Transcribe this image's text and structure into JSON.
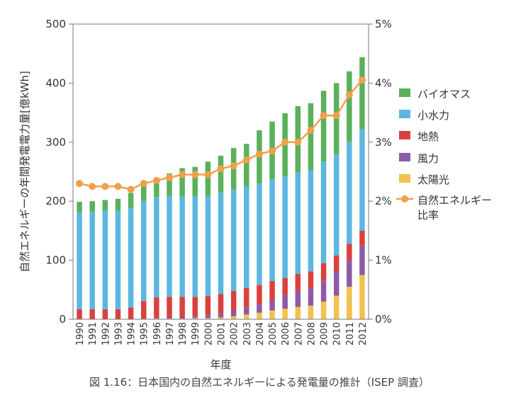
{
  "chart_data": {
    "type": "bar",
    "stacked": true,
    "caption": "図 1.16：日本国内の自然エネルギーによる発電量の推計（ISEP 調査）",
    "xlabel": "年度",
    "ylabel": "自然エネルギーの年間発電電力量[億kWh]",
    "ylim": [
      0,
      500
    ],
    "yticks": [
      "0",
      "100",
      "200",
      "300",
      "400",
      "500"
    ],
    "y2lim": [
      0,
      5
    ],
    "y2ticks": [
      "0%",
      "1%",
      "2%",
      "3%",
      "4%",
      "5%"
    ],
    "grid": false,
    "legend_position": "right",
    "categories": [
      "1990",
      "1991",
      "1992",
      "1993",
      "1994",
      "1995",
      "1996",
      "1997",
      "1998",
      "1999",
      "2000",
      "2001",
      "2002",
      "2003",
      "2004",
      "2005",
      "2006",
      "2007",
      "2008",
      "2009",
      "2010",
      "2011",
      "2012"
    ],
    "series": [
      {
        "name": "太陽光",
        "color": "#f2c14e",
        "values": [
          0,
          0,
          0,
          0,
          0,
          0,
          1,
          1,
          1,
          2,
          2,
          3,
          5,
          8,
          11,
          15,
          18,
          21,
          23,
          30,
          40,
          55,
          75
        ]
      },
      {
        "name": "風力",
        "color": "#8d5aa7",
        "values": [
          0,
          0,
          0,
          0,
          0,
          1,
          1,
          2,
          2,
          3,
          5,
          7,
          10,
          12,
          14,
          18,
          22,
          27,
          30,
          35,
          40,
          45,
          50
        ]
      },
      {
        "name": "地熱",
        "color": "#d9413f",
        "values": [
          17,
          17,
          17,
          17,
          20,
          30,
          35,
          35,
          35,
          33,
          32,
          33,
          33,
          33,
          33,
          32,
          30,
          29,
          28,
          30,
          28,
          28,
          25
        ]
      },
      {
        "name": "小水力",
        "color": "#5bb7e0",
        "values": [
          164,
          165,
          167,
          167,
          168,
          169,
          170,
          171,
          170,
          170,
          170,
          172,
          172,
          172,
          172,
          172,
          172,
          172,
          172,
          172,
          172,
          172,
          172
        ]
      },
      {
        "name": "バイオマス",
        "color": "#5bb05b",
        "values": [
          18,
          18,
          18,
          20,
          26,
          27,
          30,
          38,
          48,
          50,
          58,
          62,
          70,
          72,
          90,
          98,
          107,
          112,
          113,
          120,
          120,
          120,
          122
        ]
      },
      {
        "name": "自然エネルギー比率",
        "type": "line",
        "axis": "right",
        "color": "#f0a04a",
        "values": [
          2.3,
          2.25,
          2.25,
          2.25,
          2.2,
          2.3,
          2.35,
          2.4,
          2.45,
          2.45,
          2.45,
          2.55,
          2.6,
          2.7,
          2.8,
          2.85,
          3.0,
          3.0,
          3.2,
          3.45,
          3.45,
          3.8,
          4.05
        ]
      }
    ],
    "legend": [
      {
        "label": "バイオマス",
        "color": "#5bb05b",
        "kind": "box"
      },
      {
        "label": "小水力",
        "color": "#5bb7e0",
        "kind": "box"
      },
      {
        "label": "地熱",
        "color": "#d9413f",
        "kind": "box"
      },
      {
        "label": "風力",
        "color": "#8d5aa7",
        "kind": "box"
      },
      {
        "label": "太陽光",
        "color": "#f2c14e",
        "kind": "box"
      },
      {
        "label": "自然エネルギー",
        "label2": "比率",
        "color": "#f0a04a",
        "kind": "line"
      }
    ]
  }
}
